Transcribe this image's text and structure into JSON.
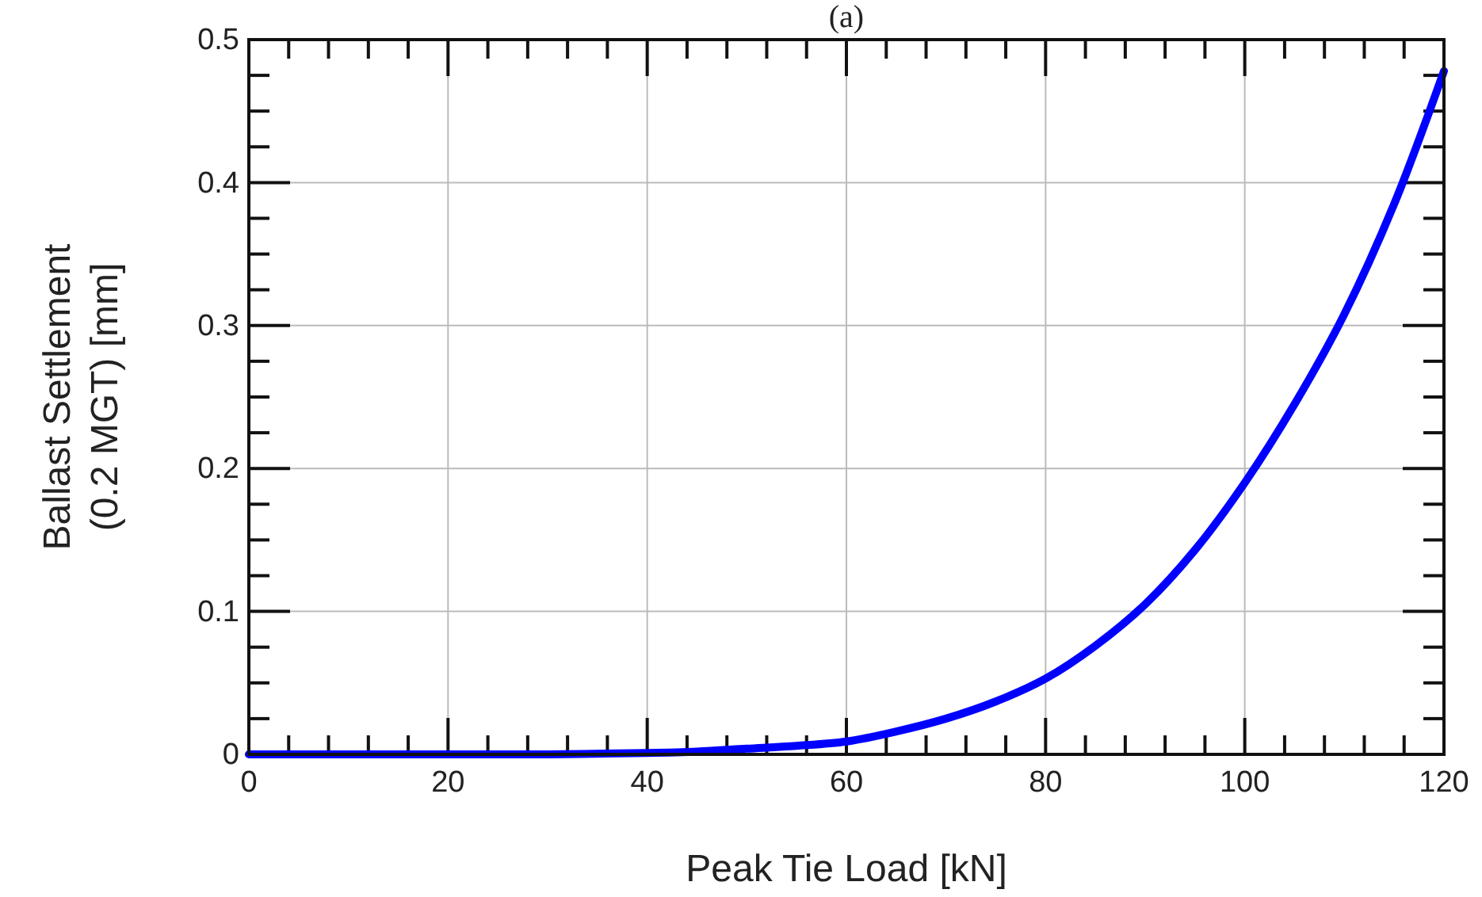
{
  "chart_data": {
    "type": "line",
    "title": "(a)",
    "xlabel": "Peak Tie Load [kN]",
    "ylabel": "Ballast Settlement\n(0.2 MGT) [mm]",
    "x": [
      0,
      10,
      20,
      30,
      40,
      45,
      50,
      55,
      60,
      65,
      70,
      75,
      80,
      85,
      90,
      95,
      100,
      105,
      110,
      115,
      120
    ],
    "series": [
      {
        "color": "#0000ff",
        "values": [
          0,
          0,
          0,
          0,
          0.001,
          0.002,
          0.004,
          0.006,
          0.009,
          0.016,
          0.025,
          0.037,
          0.053,
          0.076,
          0.105,
          0.143,
          0.19,
          0.245,
          0.308,
          0.385,
          0.478
        ]
      }
    ],
    "xlim": [
      0,
      120
    ],
    "xticks": [
      0,
      {
        "value": 4,
        "label": null
      },
      {
        "value": 8,
        "label": null
      },
      {
        "value": 12,
        "label": null
      },
      {
        "value": 16,
        "label": null
      },
      20,
      {
        "value": 24,
        "label": null
      },
      {
        "value": 28,
        "label": null
      },
      {
        "value": 32,
        "label": null
      },
      {
        "value": 36,
        "label": null
      },
      40,
      {
        "value": 44,
        "label": null
      },
      {
        "value": 48,
        "label": null
      },
      {
        "value": 52,
        "label": null
      },
      {
        "value": 56,
        "label": null
      },
      60,
      {
        "value": 64,
        "label": null
      },
      {
        "value": 68,
        "label": null
      },
      {
        "value": 72,
        "label": null
      },
      {
        "value": 76,
        "label": null
      },
      80,
      {
        "value": 84,
        "label": null
      },
      {
        "value": 88,
        "label": null
      },
      {
        "value": 92,
        "label": null
      },
      {
        "value": 96,
        "label": null
      },
      100,
      {
        "value": 104,
        "label": null
      },
      {
        "value": 108,
        "label": null
      },
      {
        "value": 112,
        "label": null
      },
      {
        "value": 116,
        "label": null
      },
      120
    ],
    "ylim": [
      0,
      0.5
    ],
    "yticks": [
      0,
      {
        "value": 0.025,
        "label": null
      },
      {
        "value": 0.05,
        "label": null
      },
      {
        "value": 0.075,
        "label": null
      },
      0.1,
      {
        "value": 0.125,
        "label": null
      },
      {
        "value": 0.15,
        "label": null
      },
      {
        "value": 0.175,
        "label": null
      },
      0.2,
      {
        "value": 0.225,
        "label": null
      },
      {
        "value": 0.25,
        "label": null
      },
      {
        "value": 0.275,
        "label": null
      },
      0.3,
      {
        "value": 0.325,
        "label": null
      },
      {
        "value": 0.35,
        "label": null
      },
      {
        "value": 0.375,
        "label": null
      },
      0.4,
      {
        "value": 0.425,
        "label": null
      },
      {
        "value": 0.45,
        "label": null
      },
      {
        "value": 0.475,
        "label": null
      },
      0.5
    ],
    "grid": true,
    "marker": "none",
    "line_style": "solid"
  }
}
